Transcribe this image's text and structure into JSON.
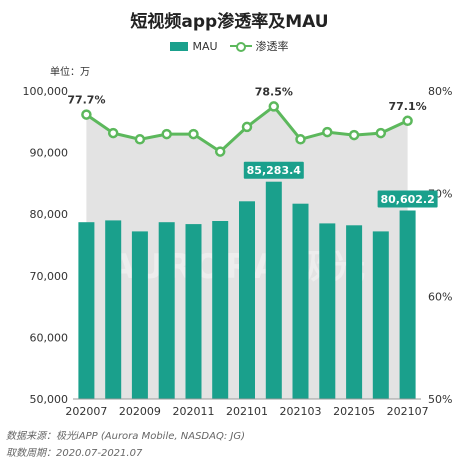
{
  "title": "短视频app渗透率及MAU",
  "unit_label": "单位：万",
  "footer": {
    "source": "数据来源：极光iAPP (Aurora Mobile, NASDAQ: JG)",
    "period": "取数周期：2020.07-2021.07"
  },
  "watermark": "AURORA 极光",
  "colors": {
    "bar": "#1aa08c",
    "line": "#5cb85c",
    "area": "#e3e3e3",
    "label_bg": "#1aa08c"
  },
  "chart_data": {
    "type": "bar",
    "categories": [
      "202007",
      "202008",
      "202009",
      "202010",
      "202011",
      "202012",
      "202101",
      "202102",
      "202103",
      "202104",
      "202105",
      "202106",
      "202107"
    ],
    "x_tick_labels": [
      "202007",
      "202009",
      "202011",
      "202101",
      "202103",
      "202105",
      "202107"
    ],
    "series": [
      {
        "name": "MAU",
        "type": "bar",
        "axis": "left",
        "values": [
          78700,
          79000,
          77200,
          78700,
          78400,
          78900,
          82100,
          85283.4,
          81700,
          78500,
          78200,
          77200,
          80602.2
        ]
      },
      {
        "name": "渗透率",
        "type": "line",
        "axis": "right",
        "values": [
          77.7,
          75.9,
          75.3,
          75.8,
          75.8,
          74.1,
          76.5,
          78.5,
          75.3,
          76.0,
          75.7,
          75.9,
          77.1
        ]
      }
    ],
    "y_left": {
      "min": 50000,
      "max": 100000,
      "ticks": [
        "50,000",
        "60,000",
        "70,000",
        "80,000",
        "90,000",
        "100,000"
      ]
    },
    "y_right": {
      "min": 50,
      "max": 80,
      "ticks": [
        "50%",
        "60%",
        "70%",
        "80%"
      ]
    },
    "bar_labels": [
      {
        "index": 7,
        "text": "85,283.4"
      },
      {
        "index": 12,
        "text": "80,602.2"
      }
    ],
    "line_labels": [
      {
        "index": 0,
        "text": "77.7%"
      },
      {
        "index": 7,
        "text": "78.5%"
      },
      {
        "index": 12,
        "text": "77.1%"
      }
    ],
    "legend": [
      "MAU",
      "渗透率"
    ],
    "grid": false,
    "legend_position": "top-center"
  }
}
